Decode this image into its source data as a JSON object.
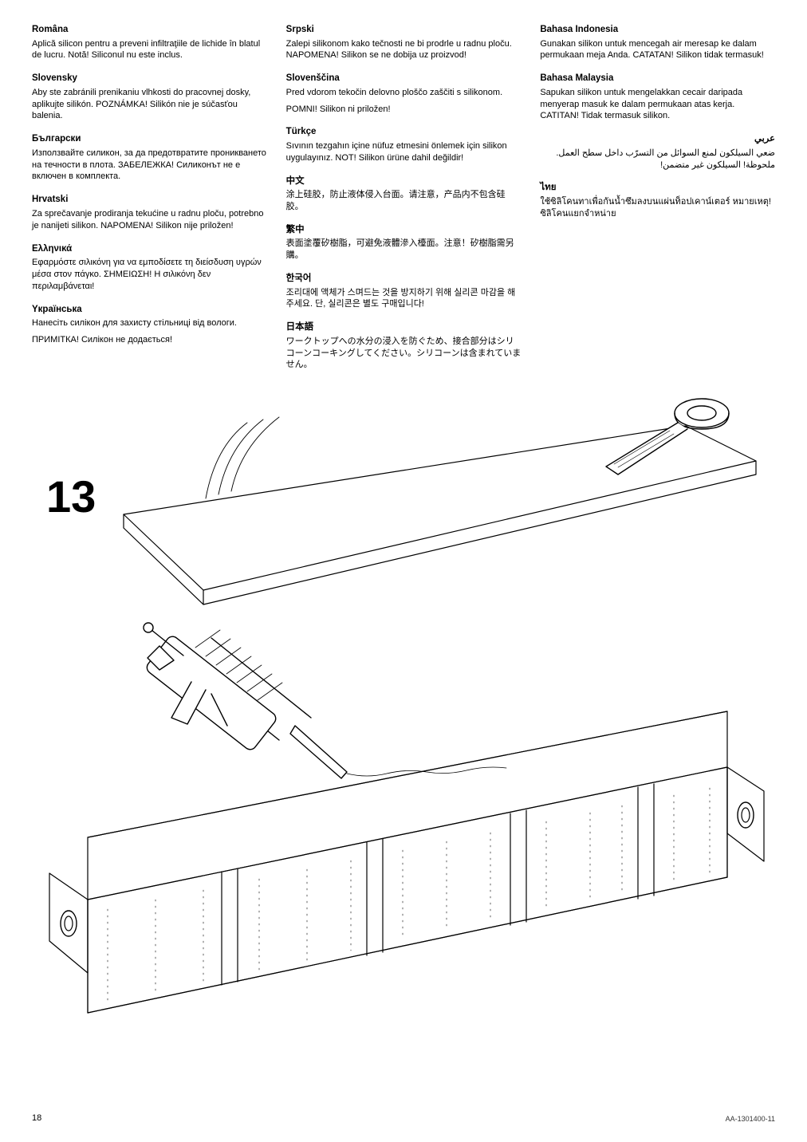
{
  "col1": [
    {
      "title": "Româna",
      "body": "Aplică silicon pentru a preveni infiltraţiile de lichide în blatul de lucru. Notă! Siliconul nu este inclus."
    },
    {
      "title": "Slovensky",
      "body": "Aby ste zabránili prenikaniu vlhkosti do pracovnej dosky, aplikujte silikón. POZNÁMKA! Silikón nie je súčasťou balenia."
    },
    {
      "title": "Български",
      "body": "Използвайте силикон, за да предотвратите проникването на течности в плота. ЗАБЕЛЕЖКА! Силиконът не е включен в комплекта."
    },
    {
      "title": "Hrvatski",
      "body": "Za sprečavanje prodiranja tekućine u radnu ploču, potrebno je nanijeti silikon. NAPOMENA! Silikon nije priložen!"
    },
    {
      "title": "Ελληνικά",
      "body": "Εφαρμόστε σιλικόνη για να εμποδίσετε τη διείσδυση υγρών μέσα στον πάγκο. ΣΗΜΕΙΩΣΗ! Η σιλικόνη δεν περιλαμβάνεται!"
    },
    {
      "title": "Yкраїнська",
      "body": "Нанесіть силікон для захисту стільниці від вологи.",
      "body2": "ПРИМІТКА! Силікон не додається!"
    }
  ],
  "col2": [
    {
      "title": "Srpski",
      "body": "Zalepi silikonom kako tečnosti ne bi prodrle u radnu ploču. NAPOMENA! Silikon se ne dobija uz proizvod!"
    },
    {
      "title": "Slovenščina",
      "body": "Pred vdorom tekočin delovno ploščo zaščiti s silikonom.",
      "body2": "POMNI! Silikon ni priložen!"
    },
    {
      "title": "Türkçe",
      "body": "Sıvının tezgahın içine nüfuz etmesini önlemek için silikon uygulayınız. NOT! Silikon ürüne dahil değildir!"
    },
    {
      "title": "中文",
      "body": "涂上硅胶，防止液体侵入台面。请注意，产品内不包含硅胶。"
    },
    {
      "title": "繁中",
      "body": "表面塗覆矽樹脂，可避免液體滲入檯面。注意！矽樹脂需另購。"
    },
    {
      "title": "한국어",
      "body": "조리대에 액체가 스며드는 것을 방지하기 위해 실리콘 마감을 해주세요. 단, 실리콘은 별도 구매입니다!"
    },
    {
      "title": "日本語",
      "body": "ワークトップへの水分の浸入を防ぐため、接合部分はシリコーンコーキングしてください。シリコーンは含まれていません。"
    }
  ],
  "col3": [
    {
      "title": "Bahasa Indonesia",
      "body": "Gunakan silikon untuk mencegah air meresap ke dalam permukaan meja Anda. CATATAN! Silikon tidak termasuk!"
    },
    {
      "title": "Bahasa Malaysia",
      "body": "Sapukan silikon untuk mengelakkan cecair daripada menyerap masuk ke dalam permukaan atas kerja. CATITAN! Tidak termasuk silikon."
    },
    {
      "title": "عربي",
      "body": "ضعي السيلكون لمنع السوائل من التسرّب داخل سطح العمل. ملحوظة! السيلكون غير متضمن!",
      "rtl": true
    },
    {
      "title": "ไทย",
      "body": "ใช้ซิลิโคนทาเพื่อกันน้ำซึมลงบนแผ่นท็อปเคาน์เตอร์ หมายเหตุ! ซิลิโคนแยกจำหน่าย"
    }
  ],
  "step_number": "13",
  "page_number": "18",
  "doc_code": "AA-1301400-11",
  "diagram": {
    "stroke": "#000",
    "stroke_width": 1.2,
    "thin_stroke": 0.6
  }
}
